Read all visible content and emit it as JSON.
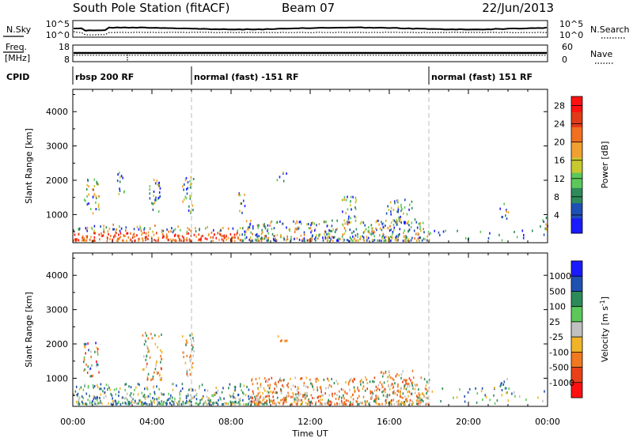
{
  "header": {
    "station": "South Pole Station (fitACF)",
    "beam": "Beam 07",
    "date": "22/Jun/2013"
  },
  "noise_panel": {
    "left_label": "N.Sky",
    "right_label": "N.Search",
    "ticks_left": [
      "10^5",
      "10^0"
    ],
    "ticks_right": [
      "10^5",
      "10^0"
    ]
  },
  "freq_panel": {
    "left_label_line1": "Freq.",
    "left_label_line2": "[MHz]",
    "right_label": "Nave",
    "ticks_left": [
      "18",
      "8"
    ],
    "ticks_right": [
      "60",
      "0"
    ]
  },
  "cpid": {
    "label": "CPID",
    "segments": [
      {
        "text": "rbsp 200 RF",
        "start_hour": 0.0
      },
      {
        "text": "normal (fast) -151 RF",
        "start_hour": 6.0
      },
      {
        "text": "normal (fast) 151 RF",
        "start_hour": 18.0
      }
    ]
  },
  "x_axis": {
    "title": "Time UT",
    "ticks": [
      "00:00",
      "04:00",
      "08:00",
      "12:00",
      "16:00",
      "20:00",
      "00:00"
    ]
  },
  "chart_data": [
    {
      "type": "heatmap",
      "name": "power",
      "ylabel": "Slant Range [km]",
      "yticks": [
        1000,
        2000,
        3000,
        4000
      ],
      "ylim": [
        180,
        4650
      ],
      "xlim": [
        0,
        24
      ],
      "colorbar": {
        "title": "Power [dB]",
        "ticks": [
          "4",
          "8",
          "12",
          "16",
          "20",
          "24",
          "28"
        ],
        "colors": [
          "#1a1aff",
          "#1e4fb4",
          "#2e8a5a",
          "#5cc85a",
          "#c8c830",
          "#f0a030",
          "#f07020",
          "#e03a18",
          "#ff1010"
        ],
        "range": [
          0,
          30
        ]
      },
      "clusters": [
        {
          "t": [
            0.0,
            2.2
          ],
          "r": [
            200,
            700
          ],
          "mode": "near"
        },
        {
          "t": [
            2.2,
            6.2
          ],
          "r": [
            200,
            650
          ],
          "mode": "near"
        },
        {
          "t": [
            6.2,
            8.5
          ],
          "r": [
            200,
            600
          ],
          "mode": "near"
        },
        {
          "t": [
            8.5,
            18.0
          ],
          "r": [
            200,
            800
          ],
          "mode": "band"
        },
        {
          "t": [
            18.0,
            24.0
          ],
          "r": [
            200,
            500
          ],
          "mode": "sparse"
        },
        {
          "t": [
            0.5,
            1.3
          ],
          "r": [
            1000,
            2000
          ],
          "mode": "patch"
        },
        {
          "t": [
            2.2,
            2.6
          ],
          "r": [
            1500,
            2200
          ],
          "mode": "patch"
        },
        {
          "t": [
            3.8,
            4.4
          ],
          "r": [
            900,
            2000
          ],
          "mode": "patch"
        },
        {
          "t": [
            5.5,
            6.1
          ],
          "r": [
            1000,
            2100
          ],
          "mode": "patch"
        },
        {
          "t": [
            8.3,
            8.7
          ],
          "r": [
            1000,
            1600
          ],
          "mode": "patch"
        },
        {
          "t": [
            10.3,
            10.8
          ],
          "r": [
            1900,
            2200
          ],
          "mode": "patch"
        },
        {
          "t": [
            13.5,
            14.3
          ],
          "r": [
            700,
            1500
          ],
          "mode": "patch"
        },
        {
          "t": [
            15.8,
            17.3
          ],
          "r": [
            700,
            1400
          ],
          "mode": "patch"
        },
        {
          "t": [
            21.5,
            22.0
          ],
          "r": [
            800,
            1300
          ],
          "mode": "patch"
        },
        {
          "t": [
            23.6,
            24.0
          ],
          "r": [
            350,
            900
          ],
          "mode": "patch"
        }
      ]
    },
    {
      "type": "heatmap",
      "name": "velocity",
      "ylabel": "Slant Range [km]",
      "yticks": [
        1000,
        2000,
        3000,
        4000
      ],
      "ylim": [
        180,
        4650
      ],
      "xlim": [
        0,
        24
      ],
      "colorbar": {
        "title": "Velocity [m s^-1]",
        "ticks": [
          "1000",
          "500",
          "100",
          "25",
          "-25",
          "-100",
          "-500",
          "-1000"
        ],
        "colors": [
          "#1a1aff",
          "#2050b0",
          "#2e8a5a",
          "#5cc85a",
          "#c0c0c0",
          "#f0b428",
          "#f07820",
          "#e84018",
          "#ff1010"
        ]
      },
      "clusters": [
        {
          "t": [
            0.0,
            6.2
          ],
          "r": [
            200,
            800
          ],
          "mode": "near-green"
        },
        {
          "t": [
            6.2,
            9.0
          ],
          "r": [
            200,
            800
          ],
          "mode": "near-green"
        },
        {
          "t": [
            9.0,
            18.0
          ],
          "r": [
            200,
            1000
          ],
          "mode": "band-orange"
        },
        {
          "t": [
            18.0,
            24.0
          ],
          "r": [
            200,
            700
          ],
          "mode": "sparse-green"
        },
        {
          "t": [
            0.5,
            1.3
          ],
          "r": [
            1000,
            2000
          ],
          "mode": "patch-mixed"
        },
        {
          "t": [
            3.5,
            4.5
          ],
          "r": [
            900,
            2300
          ],
          "mode": "patch-orange"
        },
        {
          "t": [
            5.5,
            6.1
          ],
          "r": [
            1000,
            2300
          ],
          "mode": "patch-orange"
        },
        {
          "t": [
            10.3,
            10.8
          ],
          "r": [
            1900,
            2200
          ],
          "mode": "patch-orange"
        },
        {
          "t": [
            15.5,
            17.3
          ],
          "r": [
            500,
            1200
          ],
          "mode": "patch-orange"
        },
        {
          "t": [
            21.5,
            22.0
          ],
          "r": [
            500,
            1000
          ],
          "mode": "patch-green"
        }
      ]
    }
  ]
}
